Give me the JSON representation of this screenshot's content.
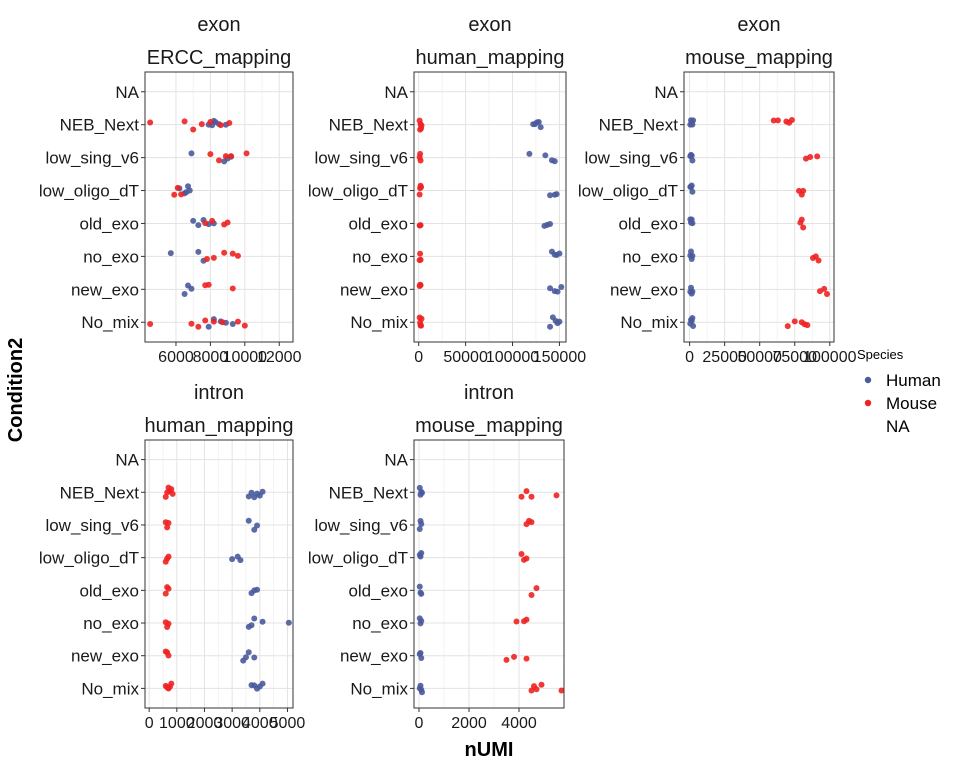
{
  "chart_data": {
    "type": "scatter",
    "x_axis_title": "nUMI",
    "y_axis_title": "Condition2",
    "categories": [
      "NA",
      "NEB_Next",
      "low_sing_v6",
      "low_oligo_dT",
      "old_exo",
      "no_exo",
      "new_exo",
      "No_mix"
    ],
    "legend": {
      "title": "Species",
      "entries": [
        {
          "label": "Human",
          "color": "#4a5a9c"
        },
        {
          "label": "Mouse",
          "color": "#ee2222"
        },
        {
          "label": "NA",
          "color": ""
        }
      ]
    },
    "panels": [
      {
        "strip": [
          "exon",
          "ERCC_mapping"
        ],
        "xlim": [
          4200,
          12800
        ],
        "ticks": [
          6000,
          8000,
          10000,
          12000
        ],
        "tick_labels": [
          "6000",
          "8000",
          "10000",
          "12000"
        ],
        "points": {
          "Human": {
            "NEB_Next": [
              7900,
              8100,
              8200,
              8300,
              8500,
              8900
            ],
            "low_sing_v6": [
              6900,
              8800,
              9000,
              9200
            ],
            "low_oligo_dT": [
              6200,
              6500,
              6600,
              6700,
              6800
            ],
            "old_exo": [
              7000,
              7300,
              7600,
              7900,
              8200
            ],
            "no_exo": [
              5700,
              7300,
              7600
            ],
            "new_exo": [
              6500,
              6700,
              6900
            ],
            "No_mix": [
              7900,
              8200,
              8600,
              8900,
              9300
            ]
          },
          "Mouse": {
            "NEB_Next": [
              4500,
              6500,
              7000,
              7500,
              8000,
              8600,
              9100
            ],
            "low_sing_v6": [
              8000,
              8500,
              8900,
              9200,
              10100
            ],
            "low_oligo_dT": [
              5900,
              6100,
              6300
            ],
            "old_exo": [
              7700,
              8100,
              8800,
              9000
            ],
            "no_exo": [
              7800,
              8200,
              8800,
              9300,
              9600
            ],
            "new_exo": [
              7700,
              7900,
              9300
            ],
            "No_mix": [
              4500,
              6900,
              7300,
              7700,
              8200,
              8700,
              9600,
              10000
            ]
          }
        }
      },
      {
        "strip": [
          "exon",
          "human_mapping"
        ],
        "xlim": [
          -5000,
          157000
        ],
        "ticks": [
          0,
          50000,
          100000,
          150000
        ],
        "tick_labels": [
          "0",
          "50000",
          "100000",
          "150000"
        ],
        "points": {
          "Human": {
            "NEB_Next": [
              122000,
              124000,
              126000,
              128000,
              130000
            ],
            "low_sing_v6": [
              118000,
              135000,
              142000,
              145000
            ],
            "low_oligo_dT": [
              140000,
              145000,
              147000
            ],
            "old_exo": [
              134000,
              137000,
              140000
            ],
            "no_exo": [
              142000,
              145000,
              147000,
              150000
            ],
            "new_exo": [
              140000,
              145000,
              148000,
              152000
            ],
            "No_mix": [
              140000,
              143000,
              146000,
              148000,
              150000
            ]
          },
          "Mouse": {
            "NEB_Next": [
              1000,
              1500,
              2000,
              2500,
              3000
            ],
            "low_sing_v6": [
              1000,
              1500,
              2000
            ],
            "low_oligo_dT": [
              1000,
              1500,
              2000,
              2500
            ],
            "old_exo": [
              1000,
              1500,
              2000
            ],
            "no_exo": [
              1000,
              1500,
              2000
            ],
            "new_exo": [
              1000,
              1500,
              2000
            ],
            "No_mix": [
              1000,
              1500,
              2000,
              2500,
              3000
            ]
          }
        }
      },
      {
        "strip": [
          "exon",
          "mouse_mapping"
        ],
        "xlim": [
          -4000,
          103000
        ],
        "ticks": [
          0,
          25000,
          50000,
          75000,
          100000
        ],
        "tick_labels": [
          "0",
          "25000",
          "50000",
          "75000",
          "100000"
        ],
        "points": {
          "Human": {
            "NEB_Next": [
              500,
              1000,
              1500,
              2000,
              2500
            ],
            "low_sing_v6": [
              500,
              1000,
              1500,
              2000
            ],
            "low_oligo_dT": [
              500,
              1000,
              1500,
              2000
            ],
            "old_exo": [
              500,
              1000,
              1500,
              2000
            ],
            "no_exo": [
              500,
              1000,
              1500,
              2000
            ],
            "new_exo": [
              500,
              1000,
              1500,
              2000
            ],
            "No_mix": [
              500,
              1000,
              1500,
              2000,
              2500
            ]
          },
          "Mouse": {
            "NEB_Next": [
              60000,
              63000,
              69000,
              71000,
              73000
            ],
            "low_sing_v6": [
              83000,
              86000,
              91000
            ],
            "low_oligo_dT": [
              78000,
              80000,
              81000
            ],
            "old_exo": [
              79000,
              80000,
              81000
            ],
            "no_exo": [
              88000,
              90000,
              92000
            ],
            "new_exo": [
              93000,
              96000,
              98000
            ],
            "No_mix": [
              70000,
              75000,
              80000,
              82000,
              84000
            ]
          }
        }
      },
      {
        "strip": [
          "intron",
          "human_mapping"
        ],
        "xlim": [
          -150,
          5200
        ],
        "ticks": [
          0,
          1000,
          2000,
          3000,
          4000,
          5000
        ],
        "tick_labels": [
          "0",
          "1000",
          "2000",
          "3000",
          "4000",
          "5000"
        ],
        "points": {
          "Human": {
            "NEB_Next": [
              3600,
              3700,
              3800,
              3900,
              4000,
              4100
            ],
            "low_sing_v6": [
              3600,
              3800,
              3900
            ],
            "low_oligo_dT": [
              3000,
              3200,
              3300
            ],
            "old_exo": [
              3700,
              3800,
              3900
            ],
            "no_exo": [
              3600,
              3700,
              3800,
              4100,
              5050
            ],
            "new_exo": [
              3400,
              3500,
              3600,
              3800
            ],
            "No_mix": [
              3700,
              3800,
              3900,
              4000,
              4100
            ]
          },
          "Mouse": {
            "NEB_Next": [
              600,
              650,
              700,
              750,
              800,
              850
            ],
            "low_sing_v6": [
              600,
              650,
              700
            ],
            "low_oligo_dT": [
              600,
              650,
              700
            ],
            "old_exo": [
              600,
              650,
              700
            ],
            "no_exo": [
              600,
              650,
              700
            ],
            "new_exo": [
              600,
              650,
              700
            ],
            "No_mix": [
              600,
              650,
              700,
              750,
              800
            ]
          }
        }
      },
      {
        "strip": [
          "intron",
          "mouse_mapping"
        ],
        "xlim": [
          -200,
          5800
        ],
        "ticks": [
          0,
          2000,
          4000
        ],
        "tick_labels": [
          "0",
          "2000",
          "4000"
        ],
        "points": {
          "Human": {
            "NEB_Next": [
              30,
              60,
              90,
              120
            ],
            "low_sing_v6": [
              30,
              60,
              90
            ],
            "low_oligo_dT": [
              30,
              60,
              90
            ],
            "old_exo": [
              30,
              60,
              90
            ],
            "no_exo": [
              30,
              60,
              90
            ],
            "new_exo": [
              30,
              60,
              90
            ],
            "No_mix": [
              30,
              60,
              90,
              120
            ]
          },
          "Mouse": {
            "NEB_Next": [
              4100,
              4300,
              4500,
              5500
            ],
            "low_sing_v6": [
              4300,
              4400,
              4500
            ],
            "low_oligo_dT": [
              4100,
              4200,
              4300
            ],
            "old_exo": [
              4500,
              4700
            ],
            "no_exo": [
              3900,
              4200,
              4300
            ],
            "new_exo": [
              3500,
              3800,
              4300
            ],
            "No_mix": [
              4500,
              4600,
              4700,
              4900,
              5700
            ]
          }
        }
      }
    ]
  }
}
